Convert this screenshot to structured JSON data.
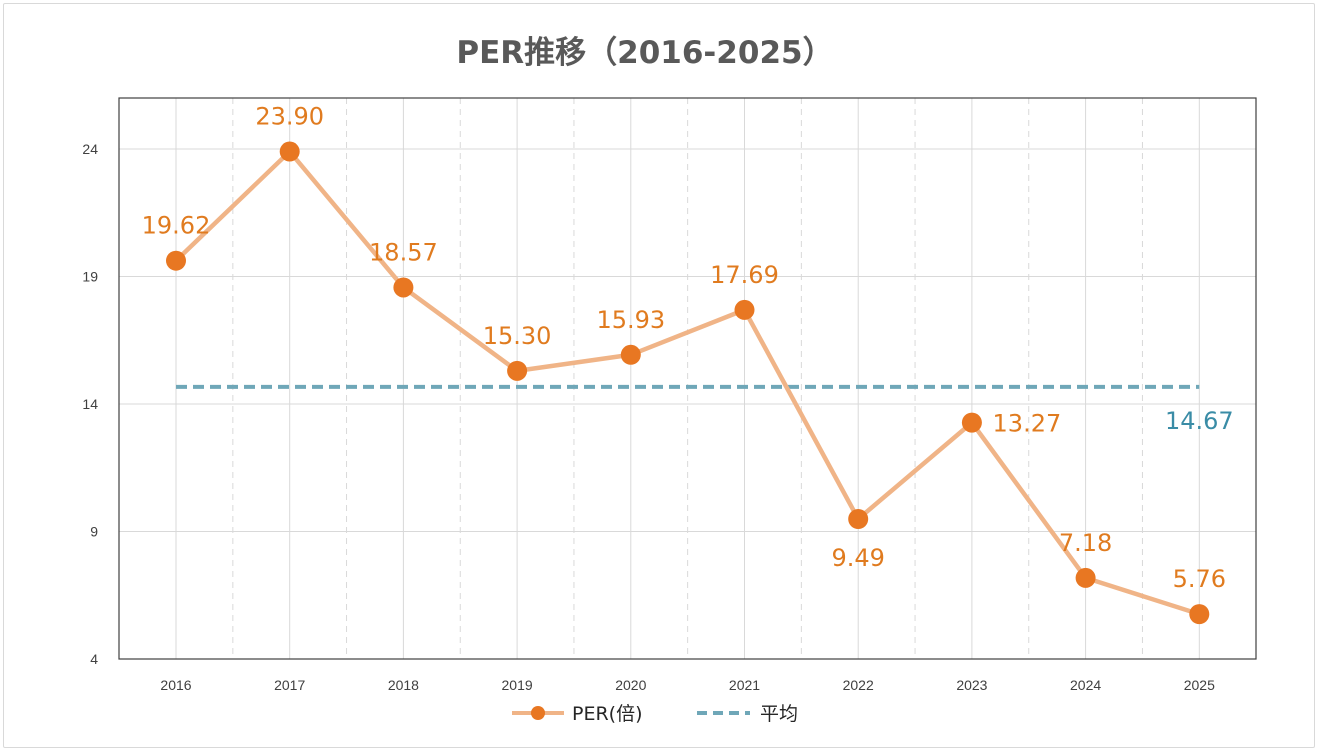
{
  "chart_data": {
    "type": "line",
    "title": "PER推移（2016-2025）",
    "categories": [
      "2016",
      "2017",
      "2018",
      "2019",
      "2020",
      "2021",
      "2022",
      "2023",
      "2024",
      "2025"
    ],
    "series": [
      {
        "name": "PER(倍)",
        "values": [
          19.62,
          23.9,
          18.57,
          15.3,
          15.93,
          17.69,
          9.49,
          13.27,
          7.18,
          5.76
        ],
        "labels": [
          "19.62",
          "23.90",
          "18.57",
          "15.30",
          "15.93",
          "17.69",
          "9.49",
          "13.27",
          "7.18",
          "5.76"
        ],
        "marker_color": "#e87722",
        "line_color": "#f0b487",
        "label_color": "#e07b1f"
      },
      {
        "name": "平均",
        "value": 14.67,
        "label": "14.67",
        "style": "dashed",
        "line_color": "#6fa7b8",
        "label_color": "#3a8ca6"
      }
    ],
    "yticks": [
      "24",
      "19",
      "14",
      "9",
      "4"
    ],
    "ylim": [
      4,
      26
    ],
    "grid": true,
    "legend_position": "bottom"
  }
}
